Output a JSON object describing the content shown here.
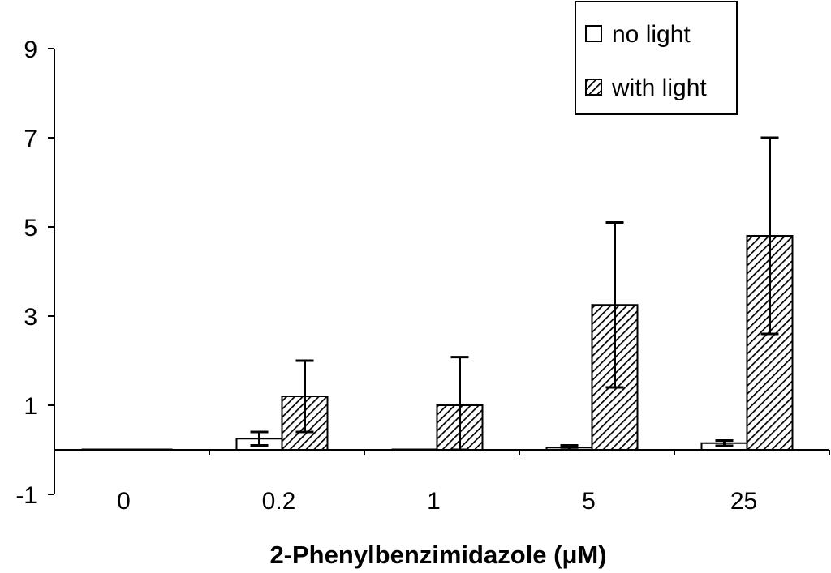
{
  "chart_data": {
    "type": "bar",
    "title": "",
    "xlabel": "2-Phenylbenzimidazole (μM)",
    "ylabel": "",
    "categories": [
      "0",
      "0.2",
      "1",
      "5",
      "25"
    ],
    "ylim": [
      -1,
      9
    ],
    "yticks": [
      -1,
      1,
      3,
      5,
      7,
      9
    ],
    "series": [
      {
        "name": "no light",
        "fill": "white",
        "values": [
          0,
          0.25,
          0,
          0.05,
          0.15
        ],
        "errors": [
          0,
          0.15,
          0,
          0.05,
          0.06
        ]
      },
      {
        "name": "with light",
        "fill": "hatched",
        "values": [
          0,
          1.2,
          1.0,
          3.25,
          4.8
        ],
        "errors": [
          0,
          0.8,
          1.08,
          1.85,
          2.2
        ]
      }
    ],
    "legend_position": "top-right",
    "grid": false
  },
  "colors": {
    "axis": "#000000",
    "bar_outline": "#000000",
    "bar_empty": "#ffffff",
    "hatch": "#000000"
  }
}
